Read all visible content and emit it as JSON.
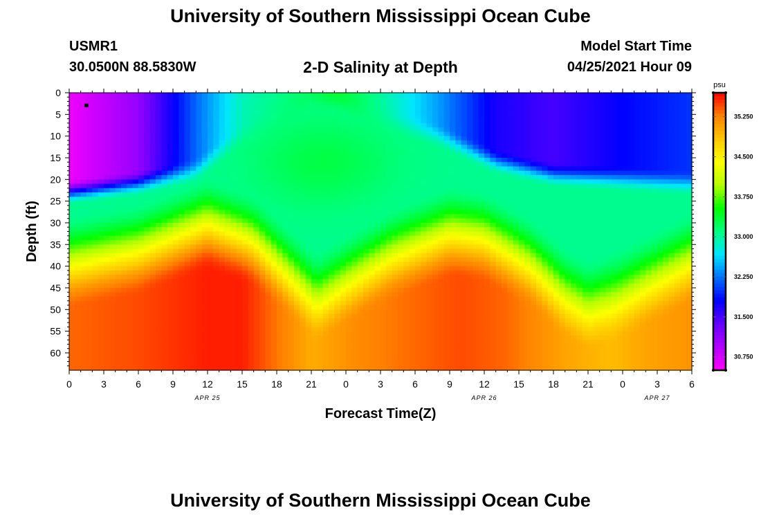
{
  "header": {
    "title": "University of Southern Mississippi Ocean Cube",
    "footer_title": "University of Southern Mississippi Ocean Cube",
    "station": "USMR1",
    "location": "30.0500N  88.5830W",
    "subtitle": "2-D Salinity at Depth",
    "start_label": "Model Start Time",
    "start_value": "04/25/2021 Hour 09"
  },
  "chart_data": {
    "type": "heatmap",
    "title": "2-D Salinity at Depth",
    "xlabel": "Forecast Time(Z)",
    "ylabel": "Depth (ft)",
    "x_range_hours": [
      0,
      54
    ],
    "y_range_ft": [
      0,
      64
    ],
    "x_tick_hours": [
      0,
      3,
      6,
      9,
      12,
      15,
      18,
      21,
      24,
      27,
      30,
      33,
      36,
      39,
      42,
      45,
      48,
      51,
      54
    ],
    "x_tick_labels": [
      "0",
      "3",
      "6",
      "9",
      "12",
      "15",
      "18",
      "21",
      "0",
      "3",
      "6",
      "9",
      "12",
      "15",
      "18",
      "21",
      "0",
      "3",
      "6"
    ],
    "y_tick_values": [
      0,
      5,
      10,
      15,
      20,
      25,
      30,
      35,
      40,
      45,
      50,
      55,
      60
    ],
    "y_tick_labels": [
      "0",
      "5",
      "10",
      "15",
      "20",
      "25",
      "30",
      "35",
      "40",
      "45",
      "50",
      "55",
      "60"
    ],
    "date_labels": [
      {
        "text": "APR 25",
        "hour": 12
      },
      {
        "text": "APR 26",
        "hour": 36
      },
      {
        "text": "APR 27",
        "hour": 51
      }
    ],
    "colorbar": {
      "unit": "psu",
      "range": [
        30.5,
        35.7
      ],
      "tick_values": [
        35.25,
        34.5,
        33.75,
        33.0,
        32.25,
        31.5,
        30.75
      ],
      "tick_labels": [
        "35.250",
        "34.500",
        "33.750",
        "33.000",
        "32.250",
        "31.500",
        "30.750"
      ],
      "colors": [
        "#ff00ff",
        "#b400ff",
        "#6400ff",
        "#0000ff",
        "#0070ff",
        "#00e6ff",
        "#00ff80",
        "#00ff00",
        "#b4ff00",
        "#ffff00",
        "#ffc800",
        "#ff8000",
        "#ff0000"
      ]
    },
    "halocline_depth_ft": [
      {
        "hour": 0,
        "depth": 38
      },
      {
        "hour": 6,
        "depth": 35
      },
      {
        "hour": 12,
        "depth": 29
      },
      {
        "hour": 16,
        "depth": 33
      },
      {
        "hour": 19,
        "depth": 40
      },
      {
        "hour": 21.5,
        "depth": 46
      },
      {
        "hour": 24,
        "depth": 42
      },
      {
        "hour": 28,
        "depth": 36
      },
      {
        "hour": 33,
        "depth": 31
      },
      {
        "hour": 36,
        "depth": 32
      },
      {
        "hour": 40,
        "depth": 38
      },
      {
        "hour": 43,
        "depth": 45
      },
      {
        "hour": 45,
        "depth": 48
      },
      {
        "hour": 48,
        "depth": 45
      },
      {
        "hour": 51,
        "depth": 41
      },
      {
        "hour": 54,
        "depth": 37
      }
    ],
    "surface_layer": [
      {
        "hour": 0,
        "salinity": 30.6,
        "thickness_ft": 21
      },
      {
        "hour": 6,
        "salinity": 31.1,
        "thickness_ft": 19
      },
      {
        "hour": 11,
        "salinity": 32.2,
        "thickness_ft": 16
      },
      {
        "hour": 15,
        "salinity": 32.9,
        "thickness_ft": 8
      },
      {
        "hour": 21,
        "salinity": 33.2,
        "thickness_ft": 0
      },
      {
        "hour": 23,
        "salinity": 33.4,
        "thickness_ft": 0
      },
      {
        "hour": 27,
        "salinity": 33.0,
        "thickness_ft": 4
      },
      {
        "hour": 32,
        "salinity": 32.4,
        "thickness_ft": 8
      },
      {
        "hour": 37,
        "salinity": 31.7,
        "thickness_ft": 14
      },
      {
        "hour": 42,
        "salinity": 31.5,
        "thickness_ft": 17
      },
      {
        "hour": 48,
        "salinity": 31.8,
        "thickness_ft": 18
      },
      {
        "hour": 54,
        "salinity": 32.0,
        "thickness_ft": 19
      }
    ],
    "bottom_salinity": [
      {
        "hour": 0,
        "salinity": 35.35
      },
      {
        "hour": 6,
        "salinity": 35.45
      },
      {
        "hour": 12,
        "salinity": 35.6
      },
      {
        "hour": 15,
        "salinity": 35.6
      },
      {
        "hour": 18,
        "salinity": 35.3
      },
      {
        "hour": 21,
        "salinity": 35.0
      },
      {
        "hour": 25,
        "salinity": 35.2
      },
      {
        "hour": 30,
        "salinity": 35.35
      },
      {
        "hour": 34,
        "salinity": 35.45
      },
      {
        "hour": 38,
        "salinity": 35.35
      },
      {
        "hour": 43,
        "salinity": 35.05
      },
      {
        "hour": 47,
        "salinity": 34.9
      },
      {
        "hour": 50,
        "salinity": 35.05
      },
      {
        "hour": 54,
        "salinity": 35.15
      }
    ],
    "station_marker": {
      "hour": 1.5,
      "depth_ft": 3
    }
  }
}
